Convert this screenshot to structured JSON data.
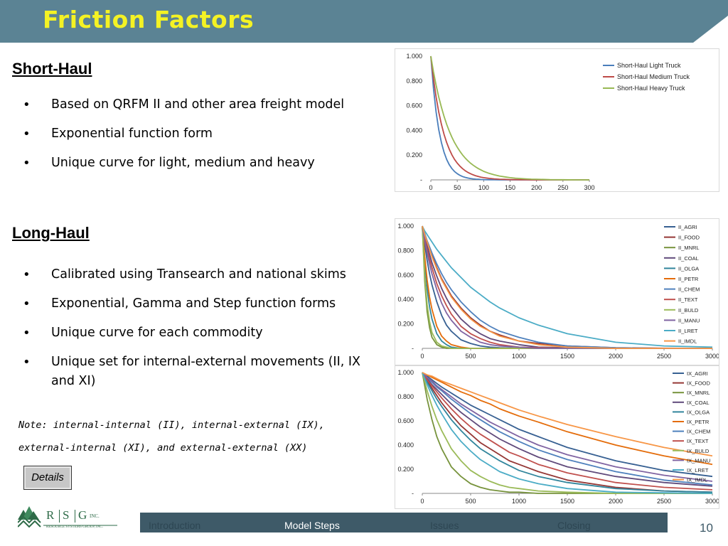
{
  "slide": {
    "title": "Friction Factors",
    "page_number": "10"
  },
  "short_haul": {
    "heading": "Short-Haul",
    "bullets": [
      "Based on QRFM II and other area freight model",
      "Exponential function form",
      "Unique curve for light, medium and heavy"
    ]
  },
  "long_haul": {
    "heading": "Long-Haul",
    "bullets": [
      "Calibrated using Transearch and national skims",
      "Exponential, Gamma and Step function forms",
      "Unique curve for each commodity",
      "Unique set for internal-external movements (II, IX and XI)"
    ]
  },
  "note": "Note: internal-internal (II), internal-external (IX), external-internal (XI), and external-external (XX)",
  "details_button": "Details",
  "nav": {
    "items": [
      "Introduction",
      "Model Steps",
      "Issues",
      "Closing"
    ],
    "active": "Model Steps"
  },
  "logo": {
    "letters": [
      "R",
      "S",
      "G"
    ],
    "suffix": "INC.",
    "tagline": "RESOURCE SYSTEMS GROUP, INC."
  },
  "colors": {
    "title_bar": "#5b8394",
    "title_text": "#f4f224",
    "footer_bar": "#3e5a68",
    "logo_green": "#2e6b48"
  },
  "chart_data": [
    {
      "type": "line",
      "x": [
        0,
        5,
        10,
        15,
        20,
        25,
        30,
        35,
        40,
        45,
        50,
        55,
        60,
        65,
        70,
        75,
        80,
        85,
        90,
        95,
        100,
        110,
        120,
        130,
        140,
        150,
        160,
        170,
        180,
        190,
        200,
        225,
        250,
        275,
        300
      ],
      "xticks": [
        "0",
        "50",
        "100",
        "150",
        "200",
        "250",
        "300"
      ],
      "xlim": [
        0,
        300
      ],
      "yticks": [
        "-",
        "0.200",
        "0.400",
        "0.600",
        "0.800",
        "1.000"
      ],
      "ylim": [
        0,
        1
      ],
      "legend_position": "top-right",
      "series": [
        {
          "name": "Short-Haul Light Truck",
          "color": "#4a7ebb",
          "values": [
            1.0,
            0.741,
            0.549,
            0.407,
            0.301,
            0.223,
            0.165,
            0.122,
            0.091,
            0.067,
            0.05,
            0.037,
            0.027,
            0.02,
            0.015,
            0.011,
            0.008,
            0.006,
            0.005,
            0.003,
            0.002,
            0.001,
            0.001,
            0,
            0,
            0,
            0,
            0,
            0,
            0,
            0,
            0,
            0,
            0,
            0
          ]
        },
        {
          "name": "Short-Haul Medium Truck",
          "color": "#be4b48",
          "values": [
            1.0,
            0.819,
            0.67,
            0.549,
            0.449,
            0.368,
            0.301,
            0.247,
            0.202,
            0.165,
            0.135,
            0.111,
            0.091,
            0.074,
            0.061,
            0.05,
            0.041,
            0.033,
            0.027,
            0.022,
            0.018,
            0.012,
            0.008,
            0.005,
            0.004,
            0.002,
            0.002,
            0.001,
            0.001,
            0,
            0,
            0,
            0,
            0,
            0
          ]
        },
        {
          "name": "Short-Haul Heavy Truck",
          "color": "#98b954",
          "values": [
            1.0,
            0.875,
            0.766,
            0.67,
            0.587,
            0.513,
            0.449,
            0.393,
            0.344,
            0.301,
            0.264,
            0.231,
            0.202,
            0.177,
            0.155,
            0.135,
            0.119,
            0.104,
            0.091,
            0.08,
            0.069,
            0.053,
            0.041,
            0.031,
            0.024,
            0.018,
            0.014,
            0.011,
            0.008,
            0.006,
            0.005,
            0.002,
            0.001,
            0,
            0
          ]
        }
      ]
    },
    {
      "type": "line",
      "x": [
        0,
        25,
        50,
        75,
        100,
        150,
        200,
        250,
        300,
        400,
        500,
        600,
        700,
        800,
        1000,
        1200,
        1500,
        2000,
        2500,
        3000
      ],
      "xticks": [
        "0",
        "500",
        "1000",
        "1500",
        "2000",
        "2500",
        "3000"
      ],
      "xlim": [
        0,
        3000
      ],
      "yticks": [
        "-",
        "0.200",
        "0.400",
        "0.600",
        "0.800",
        "1.000"
      ],
      "ylim": [
        0,
        1
      ],
      "legend_position": "right",
      "series": [
        {
          "name": "II_AGRI",
          "color": "#376092",
          "values": [
            1.0,
            0.85,
            0.72,
            0.61,
            0.52,
            0.38,
            0.27,
            0.19,
            0.14,
            0.07,
            0.04,
            0.02,
            0.01,
            0.005,
            0.001,
            0,
            0,
            0,
            0,
            0
          ]
        },
        {
          "name": "II_FOOD",
          "color": "#953735",
          "values": [
            1.0,
            0.93,
            0.87,
            0.81,
            0.76,
            0.66,
            0.57,
            0.5,
            0.43,
            0.33,
            0.25,
            0.19,
            0.14,
            0.11,
            0.06,
            0.04,
            0.02,
            0.005,
            0.001,
            0
          ]
        },
        {
          "name": "II_MNRL",
          "color": "#77933c",
          "values": [
            1.0,
            0.55,
            0.3,
            0.17,
            0.09,
            0.03,
            0.01,
            0,
            0,
            0,
            0,
            0,
            0,
            0,
            0,
            0,
            0,
            0,
            0,
            0
          ]
        },
        {
          "name": "II_COAL",
          "color": "#604a7b",
          "values": [
            1.0,
            0.92,
            0.84,
            0.77,
            0.7,
            0.59,
            0.49,
            0.41,
            0.34,
            0.24,
            0.17,
            0.12,
            0.08,
            0.06,
            0.03,
            0.01,
            0.005,
            0,
            0,
            0
          ]
        },
        {
          "name": "II_OLGA",
          "color": "#31859c",
          "values": [
            1.0,
            0.7,
            0.49,
            0.34,
            0.24,
            0.12,
            0.06,
            0.03,
            0.01,
            0,
            0,
            0,
            0,
            0,
            0,
            0,
            0,
            0,
            0,
            0
          ]
        },
        {
          "name": "II_PETR",
          "color": "#e46c0a",
          "values": [
            1.0,
            0.75,
            0.56,
            0.42,
            0.32,
            0.18,
            0.1,
            0.06,
            0.03,
            0.01,
            0,
            0,
            0,
            0,
            0,
            0,
            0,
            0,
            0,
            0
          ]
        },
        {
          "name": "II_CHEM",
          "color": "#4f81bd",
          "values": [
            1.0,
            0.94,
            0.88,
            0.83,
            0.78,
            0.69,
            0.61,
            0.54,
            0.48,
            0.38,
            0.3,
            0.23,
            0.18,
            0.14,
            0.09,
            0.05,
            0.02,
            0.005,
            0,
            0
          ]
        },
        {
          "name": "II_TEXT",
          "color": "#c0504d",
          "values": [
            1.0,
            0.9,
            0.81,
            0.73,
            0.66,
            0.53,
            0.43,
            0.35,
            0.28,
            0.18,
            0.12,
            0.08,
            0.05,
            0.03,
            0.01,
            0.005,
            0,
            0,
            0,
            0
          ]
        },
        {
          "name": "II_BULD",
          "color": "#9bbb59",
          "values": [
            1.0,
            0.6,
            0.36,
            0.22,
            0.13,
            0.05,
            0.02,
            0.01,
            0,
            0,
            0,
            0,
            0,
            0,
            0,
            0,
            0,
            0,
            0,
            0
          ]
        },
        {
          "name": "II_MANU",
          "color": "#8064a2",
          "values": [
            1.0,
            0.88,
            0.78,
            0.69,
            0.61,
            0.48,
            0.37,
            0.29,
            0.23,
            0.14,
            0.09,
            0.05,
            0.03,
            0.02,
            0.01,
            0,
            0,
            0,
            0,
            0
          ]
        },
        {
          "name": "II_LRET",
          "color": "#4bacc6",
          "values": [
            1.0,
            0.96,
            0.93,
            0.9,
            0.87,
            0.81,
            0.76,
            0.71,
            0.66,
            0.58,
            0.5,
            0.44,
            0.38,
            0.33,
            0.25,
            0.19,
            0.12,
            0.05,
            0.02,
            0.01
          ]
        },
        {
          "name": "II_IMDL",
          "color": "#f79646",
          "values": [
            1.0,
            0.93,
            0.87,
            0.81,
            0.75,
            0.65,
            0.56,
            0.49,
            0.42,
            0.32,
            0.24,
            0.18,
            0.14,
            0.1,
            0.06,
            0.03,
            0.01,
            0,
            0,
            0
          ]
        }
      ]
    },
    {
      "type": "line",
      "x": [
        0,
        50,
        100,
        150,
        200,
        300,
        400,
        500,
        600,
        700,
        800,
        900,
        1000,
        1200,
        1500,
        2000,
        2500,
        3000
      ],
      "xticks": [
        "0",
        "500",
        "1000",
        "1500",
        "2000",
        "2500",
        "3000"
      ],
      "xlim": [
        0,
        3000
      ],
      "yticks": [
        "-",
        "0.200",
        "0.400",
        "0.600",
        "0.800",
        "1.000"
      ],
      "ylim": [
        0,
        1
      ],
      "legend_position": "right",
      "series": [
        {
          "name": "IX_AGRI",
          "color": "#376092",
          "values": [
            1.0,
            0.97,
            0.94,
            0.91,
            0.88,
            0.83,
            0.78,
            0.73,
            0.69,
            0.65,
            0.61,
            0.57,
            0.53,
            0.47,
            0.38,
            0.27,
            0.19,
            0.14
          ]
        },
        {
          "name": "IX_FOOD",
          "color": "#953735",
          "values": [
            1.0,
            0.93,
            0.87,
            0.81,
            0.75,
            0.65,
            0.56,
            0.49,
            0.42,
            0.37,
            0.32,
            0.27,
            0.24,
            0.18,
            0.11,
            0.05,
            0.02,
            0.01
          ]
        },
        {
          "name": "IX_MNRL",
          "color": "#77933c",
          "values": [
            1.0,
            0.78,
            0.61,
            0.47,
            0.37,
            0.22,
            0.14,
            0.08,
            0.05,
            0.03,
            0.02,
            0.01,
            0.01,
            0,
            0,
            0,
            0,
            0
          ]
        },
        {
          "name": "IX_COAL",
          "color": "#604a7b",
          "values": [
            1.0,
            0.95,
            0.9,
            0.86,
            0.82,
            0.74,
            0.67,
            0.61,
            0.55,
            0.5,
            0.45,
            0.41,
            0.37,
            0.3,
            0.22,
            0.14,
            0.09,
            0.06
          ]
        },
        {
          "name": "IX_OLGA",
          "color": "#31859c",
          "values": [
            1.0,
            0.92,
            0.85,
            0.78,
            0.72,
            0.61,
            0.52,
            0.44,
            0.37,
            0.32,
            0.27,
            0.23,
            0.19,
            0.14,
            0.09,
            0.04,
            0.02,
            0.01
          ]
        },
        {
          "name": "IX_PETR",
          "color": "#e46c0a",
          "values": [
            1.0,
            0.98,
            0.96,
            0.94,
            0.92,
            0.88,
            0.84,
            0.81,
            0.77,
            0.74,
            0.7,
            0.67,
            0.64,
            0.59,
            0.51,
            0.4,
            0.31,
            0.24
          ]
        },
        {
          "name": "IX_CHEM",
          "color": "#4f81bd",
          "values": [
            1.0,
            0.96,
            0.92,
            0.88,
            0.85,
            0.78,
            0.72,
            0.66,
            0.61,
            0.56,
            0.51,
            0.47,
            0.43,
            0.36,
            0.28,
            0.18,
            0.11,
            0.07
          ]
        },
        {
          "name": "IX_TEXT",
          "color": "#c0504d",
          "values": [
            1.0,
            0.94,
            0.89,
            0.84,
            0.79,
            0.7,
            0.62,
            0.55,
            0.49,
            0.44,
            0.39,
            0.34,
            0.31,
            0.24,
            0.17,
            0.09,
            0.05,
            0.03
          ]
        },
        {
          "name": "IX_BULD",
          "color": "#9bbb59",
          "values": [
            1.0,
            0.85,
            0.72,
            0.61,
            0.52,
            0.37,
            0.27,
            0.19,
            0.14,
            0.1,
            0.07,
            0.05,
            0.04,
            0.02,
            0.01,
            0,
            0,
            0
          ]
        },
        {
          "name": "IX_MANU",
          "color": "#8064a2",
          "values": [
            1.0,
            0.96,
            0.93,
            0.89,
            0.86,
            0.8,
            0.74,
            0.69,
            0.64,
            0.59,
            0.55,
            0.51,
            0.47,
            0.4,
            0.32,
            0.22,
            0.15,
            0.1
          ]
        },
        {
          "name": "IX_LRET",
          "color": "#4bacc6",
          "values": [
            1.0,
            0.9,
            0.81,
            0.73,
            0.66,
            0.53,
            0.43,
            0.35,
            0.28,
            0.23,
            0.18,
            0.15,
            0.12,
            0.08,
            0.04,
            0.01,
            0.005,
            0
          ]
        },
        {
          "name": "IX_IMDL",
          "color": "#f79646",
          "values": [
            1.0,
            0.98,
            0.97,
            0.95,
            0.93,
            0.9,
            0.87,
            0.84,
            0.81,
            0.78,
            0.75,
            0.72,
            0.69,
            0.64,
            0.57,
            0.47,
            0.38,
            0.31
          ]
        }
      ]
    }
  ]
}
